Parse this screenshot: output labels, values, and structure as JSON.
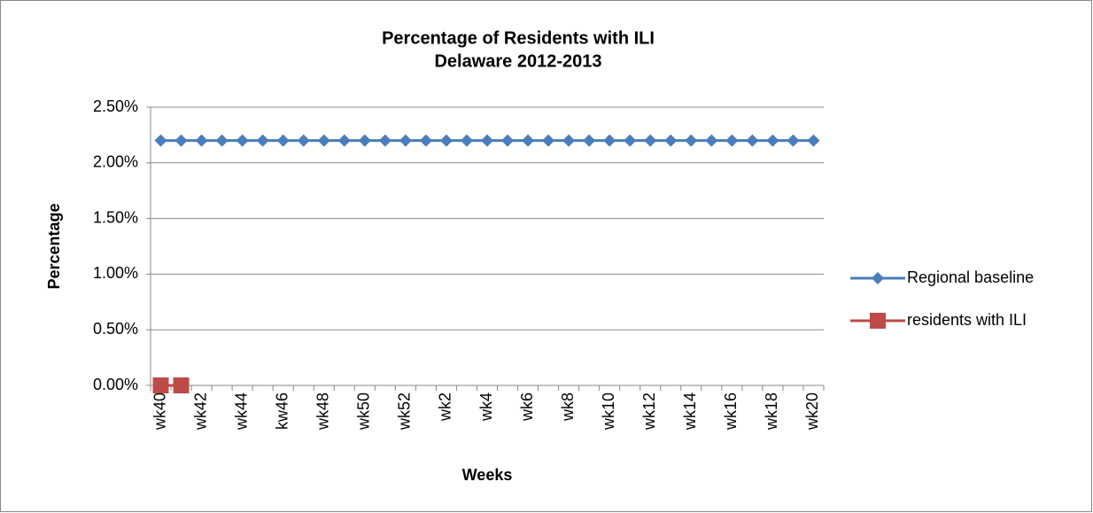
{
  "chart_data": {
    "type": "line",
    "title": [
      "Percentage of Residents with ILI",
      "Delaware 2012-2013"
    ],
    "x_label": "Weeks",
    "y_label": "Percentage",
    "categories": [
      "wk40",
      null,
      "wk42",
      null,
      "wk44",
      null,
      "kw46",
      null,
      "wk48",
      null,
      "wk50",
      null,
      "wk52",
      null,
      "wk2",
      null,
      "wk4",
      null,
      "wk6",
      null,
      "wk8",
      null,
      "wk10",
      null,
      "wk12",
      null,
      "wk14",
      null,
      "wk16",
      null,
      "wk18",
      null,
      "wk20"
    ],
    "series": [
      {
        "name": "Regional baseline",
        "color": "#4a7ebb",
        "marker": "diamond",
        "values": [
          2.2,
          2.2,
          2.2,
          2.2,
          2.2,
          2.2,
          2.2,
          2.2,
          2.2,
          2.2,
          2.2,
          2.2,
          2.2,
          2.2,
          2.2,
          2.2,
          2.2,
          2.2,
          2.2,
          2.2,
          2.2,
          2.2,
          2.2,
          2.2,
          2.2,
          2.2,
          2.2,
          2.2,
          2.2,
          2.2,
          2.2,
          2.2,
          2.2
        ]
      },
      {
        "name": "residents with ILI",
        "color": "#be4b48",
        "marker": "square",
        "values": [
          0,
          0,
          null,
          null,
          null,
          null,
          null,
          null,
          null,
          null,
          null,
          null,
          null,
          null,
          null,
          null,
          null,
          null,
          null,
          null,
          null,
          null,
          null,
          null,
          null,
          null,
          null,
          null,
          null,
          null,
          null,
          null,
          null
        ]
      }
    ],
    "ylim": [
      0,
      2.5
    ],
    "yticks": [
      {
        "value": 0,
        "label": "0.00%"
      },
      {
        "value": 0.5,
        "label": "0.50%"
      },
      {
        "value": 1,
        "label": "1.00%"
      },
      {
        "value": 1.5,
        "label": "1.50%"
      },
      {
        "value": 2,
        "label": "2.00%"
      },
      {
        "value": 2.5,
        "label": "2.50%"
      }
    ],
    "grid": true,
    "legend": "right"
  }
}
